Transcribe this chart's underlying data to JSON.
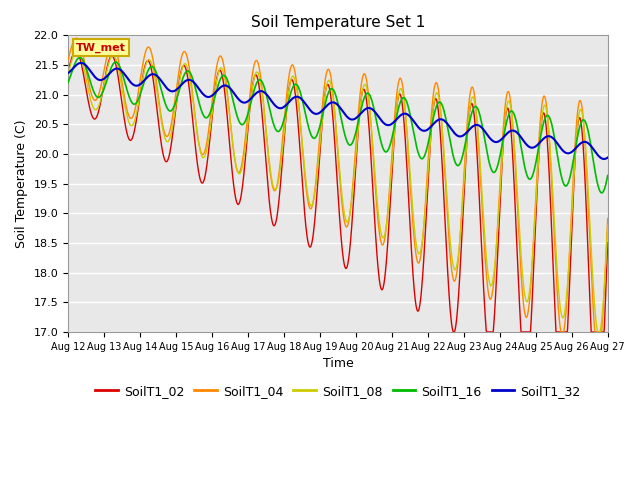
{
  "title": "Soil Temperature Set 1",
  "xlabel": "Time",
  "ylabel": "Soil Temperature (C)",
  "ylim": [
    17.0,
    22.0
  ],
  "yticks": [
    17.0,
    17.5,
    18.0,
    18.5,
    19.0,
    19.5,
    20.0,
    20.5,
    21.0,
    21.5,
    22.0
  ],
  "bg_color": "#e8e8e8",
  "fig_color": "#ffffff",
  "grid_color": "#ffffff",
  "annotation_text": "TW_met",
  "annotation_bg": "#ffff99",
  "annotation_fg": "#cc0000",
  "annotation_edge": "#ccaa00",
  "series": {
    "SoilT1_02": {
      "color": "#dd0000",
      "lw": 1.0
    },
    "SoilT1_04": {
      "color": "#ff8800",
      "lw": 1.0
    },
    "SoilT1_08": {
      "color": "#cccc00",
      "lw": 1.0
    },
    "SoilT1_16": {
      "color": "#00bb00",
      "lw": 1.2
    },
    "SoilT1_32": {
      "color": "#0000cc",
      "lw": 1.5
    }
  },
  "xtick_labels": [
    "Aug 12",
    "Aug 13",
    "Aug 14",
    "Aug 15",
    "Aug 16",
    "Aug 17",
    "Aug 18",
    "Aug 19",
    "Aug 20",
    "Aug 21",
    "Aug 22",
    "Aug 23",
    "Aug 24",
    "Aug 25",
    "Aug 26",
    "Aug 27"
  ],
  "n_points": 1440,
  "legend_labels": [
    "SoilT1_02",
    "SoilT1_04",
    "SoilT1_08",
    "SoilT1_16",
    "SoilT1_32"
  ]
}
